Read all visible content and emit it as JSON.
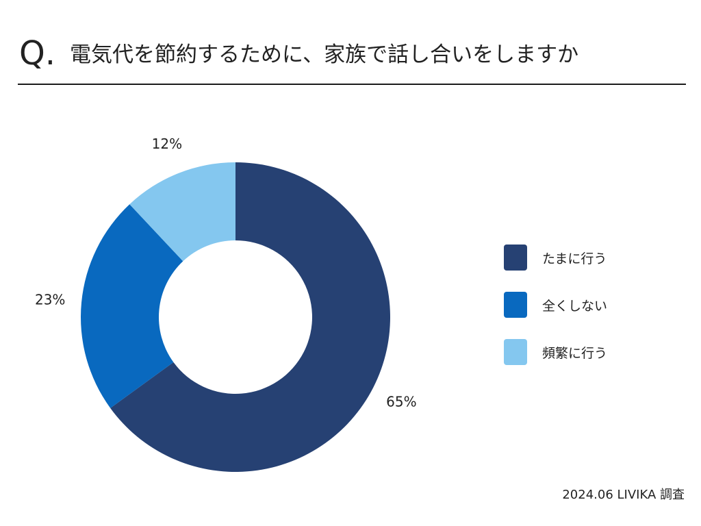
{
  "header": {
    "q_mark": "Q.",
    "question": "電気代を節約するために、家族で話し合いをしますか"
  },
  "chart_data": {
    "type": "pie",
    "donut": true,
    "categories": [
      "たまに行う",
      "全くしない",
      "頻繁に行う"
    ],
    "values": [
      65,
      23,
      12
    ],
    "labels": [
      "65%",
      "23%",
      "12%"
    ],
    "colors": [
      "#264173",
      "#0969bf",
      "#84c7ef"
    ],
    "legend_position": "right"
  },
  "legend": {
    "items": [
      {
        "label": "たまに行う",
        "color": "#264173"
      },
      {
        "label": "全くしない",
        "color": "#0969bf"
      },
      {
        "label": "頻繁に行う",
        "color": "#84c7ef"
      }
    ]
  },
  "source": "2024.06 LIVIKA 調査"
}
